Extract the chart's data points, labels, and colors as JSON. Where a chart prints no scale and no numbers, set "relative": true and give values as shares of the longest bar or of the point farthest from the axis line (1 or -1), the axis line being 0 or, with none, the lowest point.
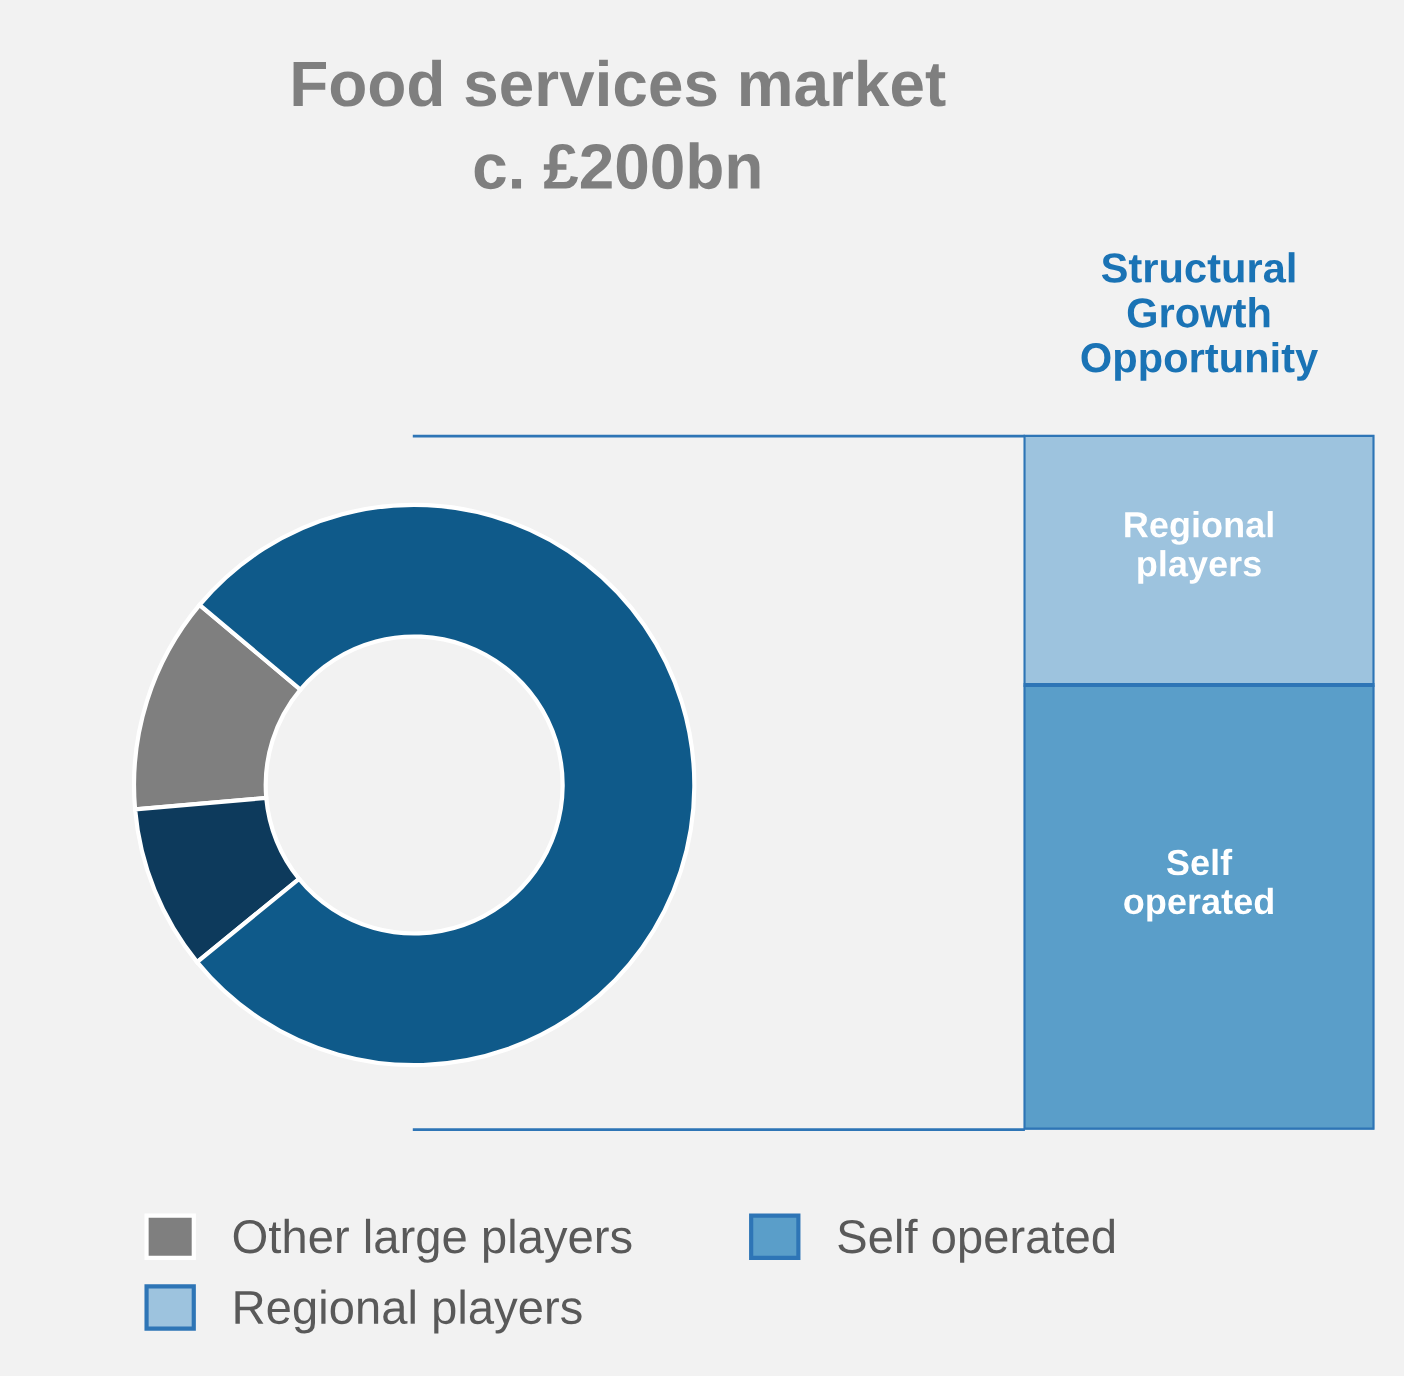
{
  "chart_data": [
    {
      "type": "donut",
      "title": "Food services market",
      "subtitle": "c. £200bn",
      "categories": [
        "Other large players",
        null,
        null
      ],
      "values": [
        12.5,
        9.5,
        78
      ],
      "colors": [
        "#7f7f7f",
        "#0d3a5c",
        "#0f5a8a"
      ],
      "legend": "bottom"
    },
    {
      "type": "bar",
      "title": "Structural Growth Opportunity",
      "stacked": true,
      "relative": true,
      "categories": [
        null
      ],
      "series": [
        {
          "name": "Self operated",
          "color": "#5a9ec9",
          "values": [
            0.64
          ]
        },
        {
          "name": "Regional players",
          "color": "#9dc3de",
          "values": [
            0.36
          ]
        }
      ],
      "legend": "bottom"
    }
  ]
}
